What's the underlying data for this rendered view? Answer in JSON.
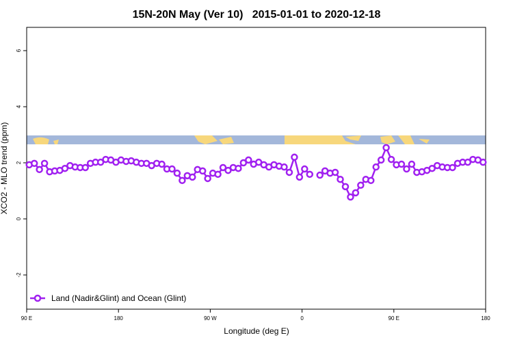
{
  "chart_data": {
    "type": "line",
    "title": "15N-20N May (Ver 10)   2015-01-01 to 2020-12-18",
    "xlabel": "Longitude (deg E)",
    "ylabel": "XCO2 - MLO trend (ppm)",
    "xlim": [
      90,
      540
    ],
    "ylim": [
      -3.22,
      6.83
    ],
    "xticks": [
      {
        "value": 90,
        "label": "90 E"
      },
      180,
      {
        "value": 270,
        "label": "90 W"
      },
      {
        "value": 360,
        "label": "0"
      },
      {
        "value": 450,
        "label": "90 E"
      },
      {
        "value": 540,
        "label": "180"
      }
    ],
    "yticks": [
      -2,
      0,
      2,
      4,
      6
    ],
    "legend": "bottom-left",
    "x": [
      92.5,
      97.5,
      102.5,
      107.5,
      112.5,
      117.5,
      122.5,
      127.5,
      132.5,
      137.5,
      142.5,
      147.5,
      152.5,
      157.5,
      162.5,
      167.5,
      172.5,
      177.5,
      182.5,
      187.5,
      192.5,
      197.5,
      202.5,
      207.5,
      212.5,
      217.5,
      222.5,
      227.5,
      232.5,
      237.5,
      242.5,
      247.5,
      252.5,
      257.5,
      262.5,
      267.5,
      272.5,
      277.5,
      282.5,
      287.5,
      292.5,
      297.5,
      302.5,
      307.5,
      312.5,
      317.5,
      322.5,
      327.5,
      332.5,
      337.5,
      342.5,
      347.5,
      352.5,
      357.5,
      362.5,
      367.5,
      372.5,
      377.5,
      382.5,
      387.5,
      392.5,
      397.5,
      402.5,
      407.5,
      412.5,
      417.5,
      422.5,
      427.5,
      432.5,
      437.5,
      442.5,
      447.5,
      452.5,
      457.5,
      462.5,
      467.5,
      472.5,
      477.5,
      482.5,
      487.5,
      492.5,
      497.5,
      502.5,
      507.5,
      512.5,
      517.5,
      522.5,
      527.5,
      532.5,
      537.5
    ],
    "series": [
      {
        "name": "Land (Nadir&Glint) and Ocean (Glint)",
        "color": "#a020f0",
        "values": [
          1.93,
          1.98,
          1.76,
          1.98,
          1.68,
          1.71,
          1.73,
          1.8,
          1.9,
          1.85,
          1.83,
          1.83,
          1.98,
          2.02,
          2.02,
          2.12,
          2.1,
          2.02,
          2.1,
          2.05,
          2.07,
          2.02,
          1.98,
          1.98,
          1.9,
          1.98,
          1.95,
          1.78,
          1.78,
          1.63,
          1.37,
          1.54,
          1.49,
          1.76,
          1.71,
          1.44,
          1.63,
          1.59,
          1.83,
          1.73,
          1.83,
          1.8,
          2.0,
          2.1,
          1.95,
          2.02,
          1.93,
          1.85,
          1.93,
          1.88,
          1.85,
          1.66,
          2.2,
          1.49,
          1.78,
          1.59,
          null,
          1.56,
          1.71,
          1.63,
          1.66,
          1.41,
          1.15,
          0.78,
          0.93,
          1.2,
          1.41,
          1.37,
          1.85,
          2.1,
          2.54,
          2.12,
          1.93,
          1.95,
          1.78,
          1.95,
          1.66,
          1.68,
          1.73,
          1.8,
          1.9,
          1.85,
          1.83,
          1.83,
          1.98,
          2.02,
          2.02,
          2.12,
          2.1,
          2.02
        ]
      }
    ]
  }
}
